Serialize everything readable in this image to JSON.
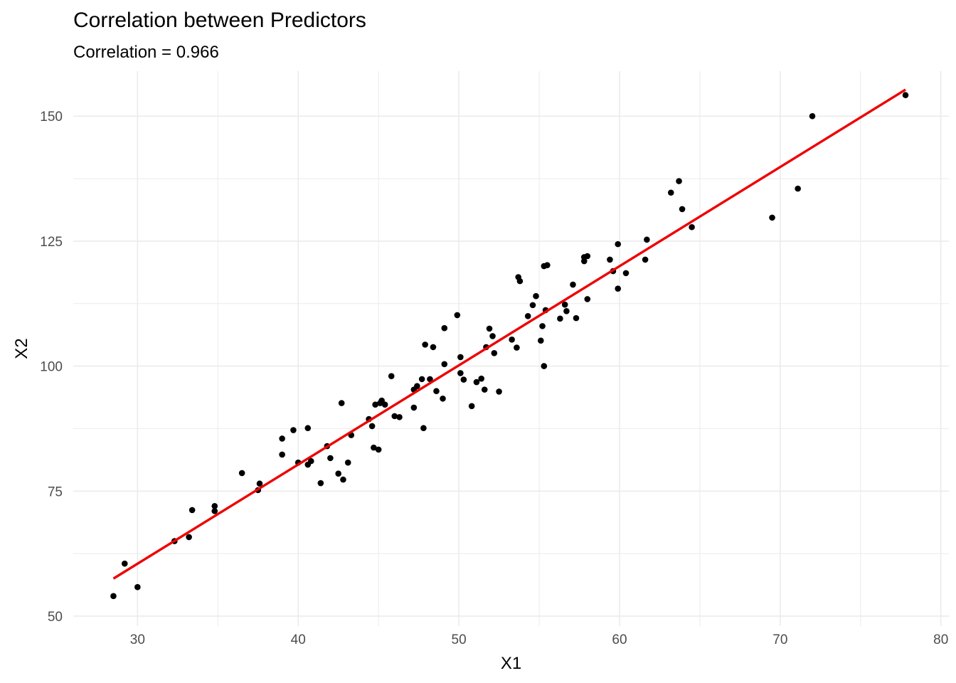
{
  "chart_data": {
    "type": "scatter",
    "title": "Correlation between Predictors",
    "subtitle": "Correlation = 0.966",
    "xlabel": "X1",
    "ylabel": "X2",
    "xlim": [
      26.0,
      80.5
    ],
    "ylim": [
      48.0,
      159.0
    ],
    "xticks": [
      30,
      40,
      50,
      60,
      70,
      80
    ],
    "yticks": [
      50,
      75,
      100,
      125,
      150
    ],
    "grid": true,
    "colors": {
      "points": "#000000",
      "fit_line": "#ee0000",
      "grid": "#ebebeb"
    },
    "fit_line": {
      "x": [
        28.5,
        77.8
      ],
      "y": [
        57.5,
        155.3
      ]
    },
    "points": [
      [
        28.5,
        54.0
      ],
      [
        29.2,
        60.5
      ],
      [
        30.0,
        55.8
      ],
      [
        32.3,
        65.0
      ],
      [
        33.2,
        65.8
      ],
      [
        33.4,
        71.2
      ],
      [
        34.8,
        71.0
      ],
      [
        34.8,
        72.0
      ],
      [
        36.5,
        78.6
      ],
      [
        37.5,
        75.2
      ],
      [
        37.6,
        76.5
      ],
      [
        39.0,
        82.3
      ],
      [
        39.0,
        85.5
      ],
      [
        39.7,
        87.2
      ],
      [
        40.0,
        80.7
      ],
      [
        40.6,
        80.3
      ],
      [
        40.6,
        87.6
      ],
      [
        40.8,
        81.0
      ],
      [
        41.4,
        76.6
      ],
      [
        41.8,
        84.0
      ],
      [
        42.0,
        81.6
      ],
      [
        42.5,
        78.5
      ],
      [
        42.7,
        92.6
      ],
      [
        42.8,
        77.3
      ],
      [
        43.1,
        80.7
      ],
      [
        43.3,
        86.2
      ],
      [
        44.4,
        89.4
      ],
      [
        44.6,
        88.0
      ],
      [
        44.7,
        83.7
      ],
      [
        44.8,
        92.3
      ],
      [
        45.0,
        83.3
      ],
      [
        45.1,
        92.6
      ],
      [
        45.2,
        93.1
      ],
      [
        45.4,
        92.3
      ],
      [
        45.8,
        98.0
      ],
      [
        46.0,
        90.0
      ],
      [
        46.3,
        89.8
      ],
      [
        47.2,
        91.7
      ],
      [
        47.2,
        95.3
      ],
      [
        47.4,
        96.0
      ],
      [
        47.7,
        97.4
      ],
      [
        47.8,
        87.6
      ],
      [
        47.9,
        104.3
      ],
      [
        48.2,
        97.4
      ],
      [
        48.4,
        103.8
      ],
      [
        48.6,
        95.0
      ],
      [
        49.0,
        93.5
      ],
      [
        49.1,
        100.4
      ],
      [
        49.1,
        107.6
      ],
      [
        49.9,
        110.2
      ],
      [
        50.1,
        101.8
      ],
      [
        50.1,
        98.6
      ],
      [
        50.3,
        97.3
      ],
      [
        50.8,
        92.0
      ],
      [
        51.1,
        96.8
      ],
      [
        51.4,
        97.5
      ],
      [
        51.6,
        95.3
      ],
      [
        51.7,
        103.8
      ],
      [
        51.9,
        107.5
      ],
      [
        52.1,
        106.0
      ],
      [
        52.2,
        102.6
      ],
      [
        52.5,
        94.9
      ],
      [
        53.3,
        105.3
      ],
      [
        53.6,
        103.7
      ],
      [
        53.7,
        117.8
      ],
      [
        53.8,
        117.0
      ],
      [
        54.3,
        110.0
      ],
      [
        54.6,
        112.2
      ],
      [
        54.8,
        114.0
      ],
      [
        55.1,
        105.1
      ],
      [
        55.2,
        108.0
      ],
      [
        55.3,
        100.0
      ],
      [
        55.3,
        120.0
      ],
      [
        55.4,
        111.2
      ],
      [
        55.5,
        120.2
      ],
      [
        56.3,
        109.5
      ],
      [
        56.6,
        112.3
      ],
      [
        56.7,
        111.0
      ],
      [
        57.1,
        116.3
      ],
      [
        57.3,
        109.6
      ],
      [
        57.8,
        121.0
      ],
      [
        57.8,
        121.8
      ],
      [
        58.0,
        113.4
      ],
      [
        58.0,
        122.0
      ],
      [
        59.4,
        121.3
      ],
      [
        59.6,
        119.0
      ],
      [
        59.9,
        115.5
      ],
      [
        59.9,
        124.4
      ],
      [
        60.4,
        118.6
      ],
      [
        61.6,
        121.3
      ],
      [
        61.7,
        125.3
      ],
      [
        63.2,
        134.7
      ],
      [
        63.7,
        137.0
      ],
      [
        63.9,
        131.4
      ],
      [
        64.5,
        127.8
      ],
      [
        69.5,
        129.7
      ],
      [
        71.1,
        135.5
      ],
      [
        72.0,
        150.0
      ],
      [
        77.8,
        154.2
      ]
    ]
  }
}
